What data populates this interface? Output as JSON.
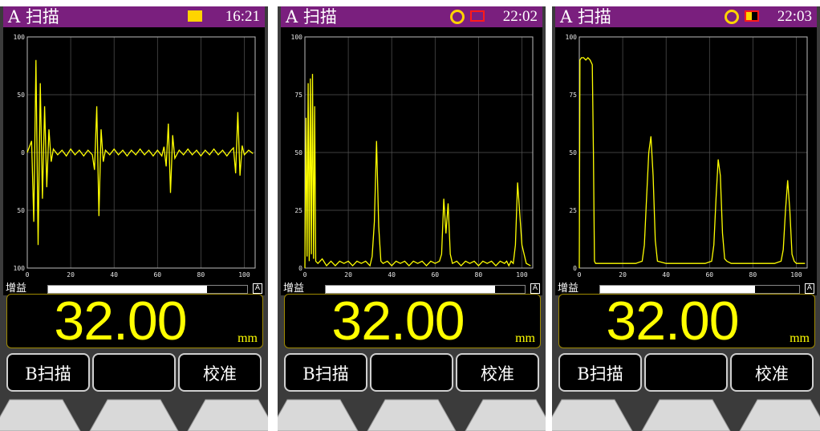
{
  "colors": {
    "title_bar": "#7a1f7e",
    "trace": "#ffff00",
    "indicator_circle": "#ffd400",
    "indicator_battery": "#ff1a1a",
    "readout_text": "#ffff00"
  },
  "screens": [
    {
      "title": "A 扫描",
      "time": "16:21",
      "status_icons": [
        "yellow-battery-icon"
      ],
      "gain_label": "增益",
      "gain_level": 0.8,
      "gain_mode": "A",
      "thickness_value": "32.00",
      "thickness_unit": "mm",
      "softkeys": [
        "B扫描",
        "",
        "校准"
      ],
      "chart_data": {
        "type": "line",
        "title": "",
        "xlabel": "",
        "ylabel": "",
        "x_ticks": [
          "0",
          "20",
          "40",
          "60",
          "80",
          "100"
        ],
        "y_ticks": [
          "100",
          "50",
          "0",
          "50",
          "100"
        ],
        "xlim": [
          0,
          105
        ],
        "ylim": [
          -100,
          100
        ],
        "grid": true,
        "series": [
          {
            "x": [
              0,
              2,
              3,
              4,
              5,
              6,
              7,
              8,
              9,
              10,
              11,
              12,
              14,
              16,
              18,
              20,
              22,
              24,
              26,
              28,
              30,
              31,
              32,
              33,
              34,
              35,
              36,
              38,
              40,
              42,
              44,
              46,
              48,
              50,
              52,
              54,
              56,
              58,
              60,
              62,
              63,
              64,
              65,
              66,
              67,
              68,
              70,
              72,
              74,
              76,
              78,
              80,
              82,
              84,
              86,
              88,
              90,
              92,
              94,
              95,
              96,
              97,
              98,
              99,
              100,
              102,
              104
            ],
            "y": [
              0,
              10,
              -60,
              80,
              -80,
              60,
              -40,
              40,
              -30,
              20,
              -8,
              3,
              -2,
              2,
              -3,
              3,
              -2,
              2,
              -3,
              2,
              -2,
              -15,
              40,
              -55,
              20,
              -8,
              2,
              -2,
              3,
              -2,
              2,
              -3,
              2,
              -2,
              3,
              -2,
              2,
              -3,
              2,
              -3,
              5,
              -12,
              25,
              -35,
              15,
              -5,
              2,
              -2,
              3,
              -2,
              2,
              -3,
              2,
              -2,
              3,
              -2,
              2,
              -3,
              2,
              4,
              -18,
              35,
              -20,
              6,
              -2,
              2,
              -1
            ]
          }
        ]
      }
    },
    {
      "title": "A 扫描",
      "time": "22:02",
      "status_icons": [
        "yellow-ring-icon",
        "red-battery-icon"
      ],
      "gain_label": "增益",
      "gain_level": 0.85,
      "gain_mode": "A",
      "thickness_value": "32.00",
      "thickness_unit": "mm",
      "softkeys": [
        "B扫描",
        "",
        "校准"
      ],
      "chart_data": {
        "type": "line",
        "title": "",
        "xlabel": "",
        "ylabel": "",
        "x_ticks": [
          "0",
          "20",
          "40",
          "60",
          "80",
          "100"
        ],
        "y_ticks": [
          "100",
          "75",
          "50",
          "25",
          "0"
        ],
        "xlim": [
          0,
          105
        ],
        "ylim": [
          0,
          100
        ],
        "grid": true,
        "series": [
          {
            "x": [
              0,
              0.5,
              1,
              1.5,
              2,
              2.5,
              3,
              3.5,
              4,
              4.5,
              5,
              6,
              8,
              10,
              12,
              14,
              16,
              18,
              20,
              22,
              24,
              26,
              28,
              30,
              31,
              32,
              33,
              34,
              35,
              36,
              38,
              40,
              42,
              44,
              46,
              48,
              50,
              52,
              54,
              56,
              58,
              60,
              62,
              63,
              64,
              65,
              66,
              67,
              68,
              70,
              72,
              74,
              76,
              78,
              80,
              82,
              84,
              86,
              88,
              90,
              92,
              93,
              94,
              95,
              96,
              97,
              98,
              100,
              102,
              104
            ],
            "y": [
              0,
              65,
              5,
              80,
              3,
              82,
              6,
              84,
              4,
              70,
              3,
              2,
              4,
              1,
              3,
              1,
              3,
              2,
              3,
              1,
              3,
              2,
              3,
              1,
              5,
              20,
              55,
              18,
              3,
              2,
              3,
              1,
              3,
              2,
              3,
              1,
              3,
              2,
              3,
              1,
              3,
              2,
              3,
              6,
              30,
              15,
              28,
              6,
              2,
              3,
              1,
              3,
              2,
              3,
              1,
              3,
              2,
              3,
              1,
              3,
              2,
              3,
              1,
              3,
              2,
              10,
              37,
              10,
              2,
              1
            ]
          }
        ]
      }
    },
    {
      "title": "A 扫描",
      "time": "22:03",
      "status_icons": [
        "yellow-ring-icon",
        "half-battery-icon"
      ],
      "gain_label": "增益",
      "gain_level": 0.78,
      "gain_mode": "A",
      "thickness_value": "32.00",
      "thickness_unit": "mm",
      "softkeys": [
        "B扫描",
        "",
        "校准"
      ],
      "chart_data": {
        "type": "line",
        "title": "",
        "xlabel": "",
        "ylabel": "",
        "x_ticks": [
          "0",
          "20",
          "40",
          "60",
          "80",
          "100"
        ],
        "y_ticks": [
          "100",
          "75",
          "50",
          "25",
          "0"
        ],
        "xlim": [
          0,
          105
        ],
        "ylim": [
          0,
          100
        ],
        "grid": true,
        "series": [
          {
            "x": [
              0,
              0.3,
              1,
              2,
              3,
              4,
              5,
              6,
              6.5,
              7,
              7.5,
              8,
              10,
              14,
              20,
              26,
              29,
              30,
              31,
              32,
              33,
              34,
              35,
              36,
              40,
              50,
              58,
              61,
              62,
              63,
              64,
              65,
              66,
              67,
              68,
              70,
              80,
              90,
              93,
              94,
              95,
              96,
              97,
              98,
              99,
              100,
              102,
              104
            ],
            "y": [
              0,
              90,
              91,
              91,
              90,
              91,
              90,
              88,
              50,
              3,
              2,
              2,
              2,
              2,
              2,
              2,
              3,
              10,
              30,
              50,
              57,
              40,
              12,
              3,
              2,
              2,
              2,
              3,
              10,
              30,
              47,
              40,
              15,
              4,
              3,
              2,
              2,
              2,
              3,
              8,
              25,
              38,
              25,
              6,
              3,
              2,
              2,
              2
            ]
          }
        ]
      }
    }
  ]
}
